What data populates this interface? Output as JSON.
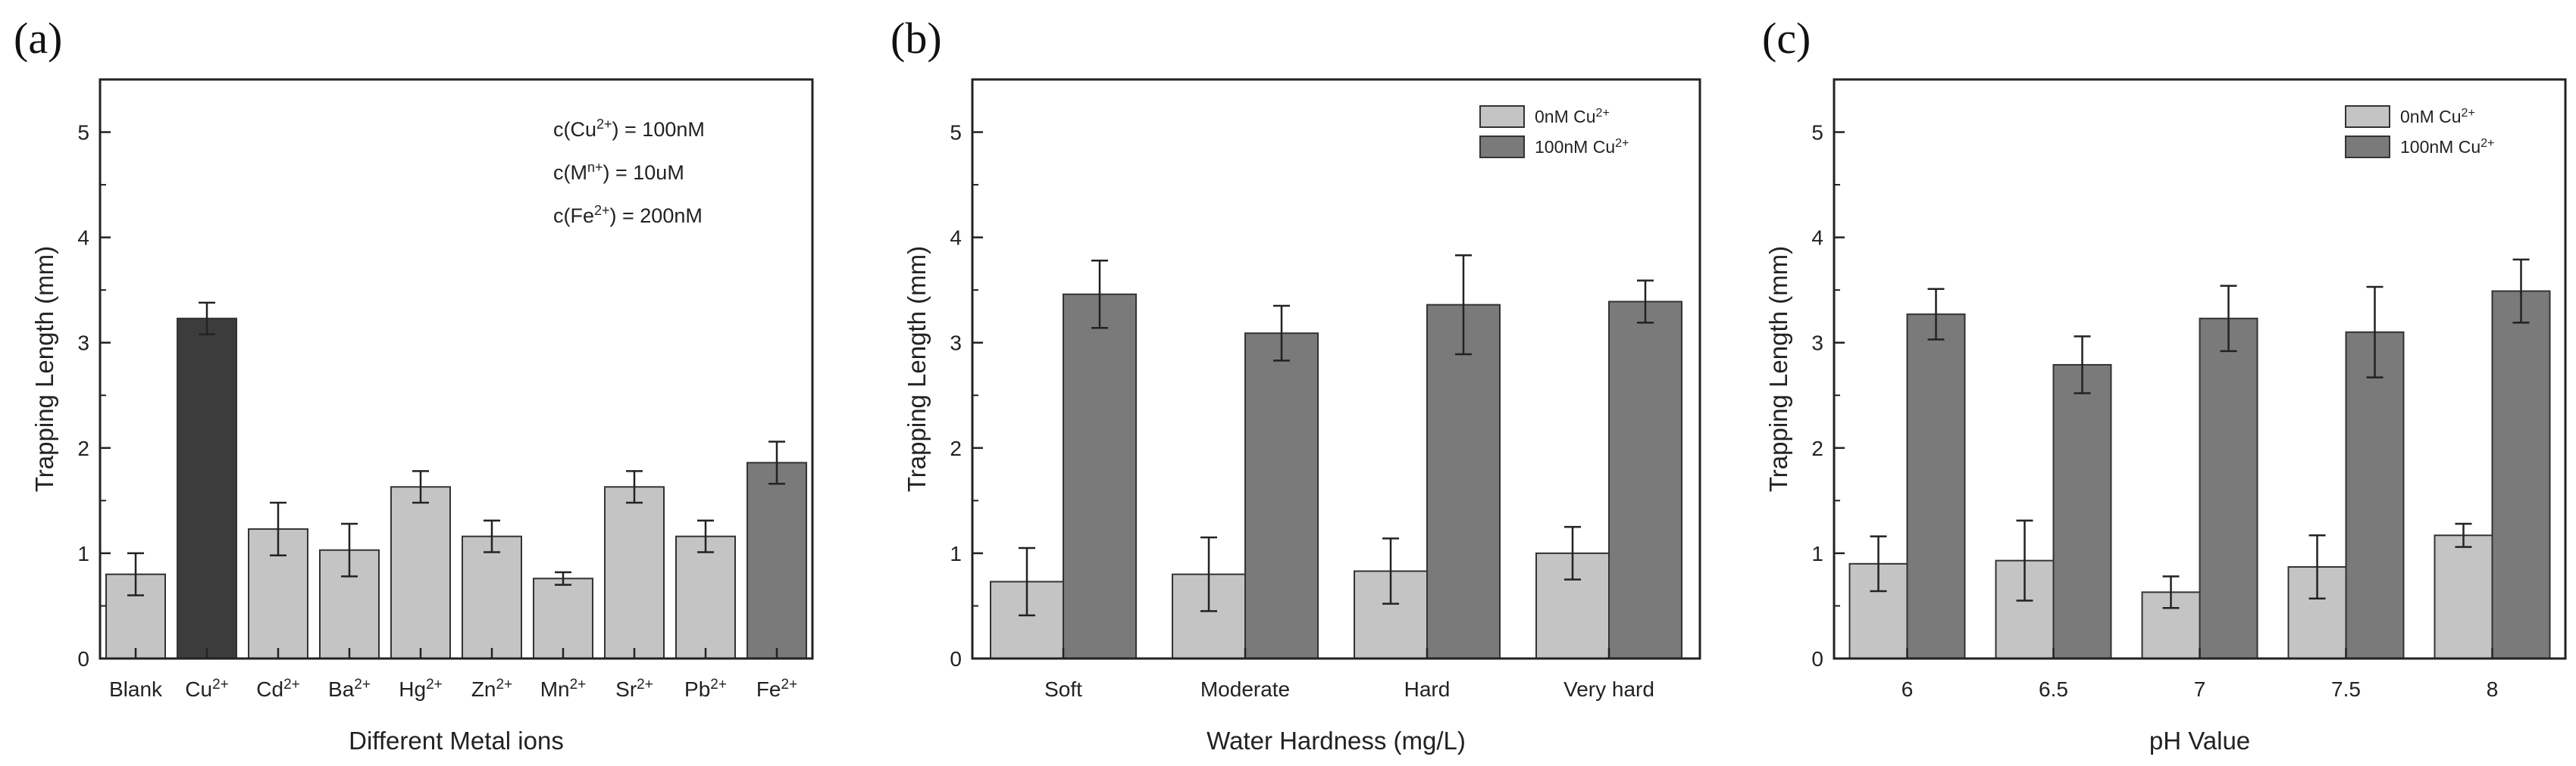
{
  "chart_data": [
    {
      "panel": "(a)",
      "type": "bar",
      "xlabel": "Different Metal ions",
      "ylabel": "Trapping Length (mm)",
      "ylim": [
        0,
        5.5
      ],
      "yticks": [
        "0",
        "1",
        "2",
        "3",
        "4",
        "5"
      ],
      "categories": [
        {
          "base": "Blank",
          "sup": ""
        },
        {
          "base": "Cu",
          "sup": "2+"
        },
        {
          "base": "Cd",
          "sup": "2+"
        },
        {
          "base": "Ba",
          "sup": "2+"
        },
        {
          "base": "Hg",
          "sup": "2+"
        },
        {
          "base": "Zn",
          "sup": "2+"
        },
        {
          "base": "Mn",
          "sup": "2+"
        },
        {
          "base": "Sr",
          "sup": "2+"
        },
        {
          "base": "Pb",
          "sup": "2+"
        },
        {
          "base": "Fe",
          "sup": "2+"
        }
      ],
      "values": [
        0.8,
        3.23,
        1.23,
        1.03,
        1.63,
        1.16,
        0.76,
        1.63,
        1.16,
        1.86
      ],
      "errors": [
        0.2,
        0.15,
        0.25,
        0.25,
        0.15,
        0.15,
        0.06,
        0.15,
        0.15,
        0.2
      ],
      "bar_colors": [
        "#c4c4c4",
        "#3c3c3c",
        "#c4c4c4",
        "#c4c4c4",
        "#c4c4c4",
        "#c4c4c4",
        "#c4c4c4",
        "#c4c4c4",
        "#c4c4c4",
        "#7a7a7a"
      ],
      "annotations": [
        [
          {
            "t": "c(Cu"
          },
          {
            "t": "2+",
            "sup": true
          },
          {
            "t": ") = 100nM"
          }
        ],
        [
          {
            "t": "c(M"
          },
          {
            "t": "n+",
            "sup": true
          },
          {
            "t": ") = 10uM"
          }
        ],
        [
          {
            "t": "c(Fe"
          },
          {
            "t": "2+",
            "sup": true
          },
          {
            "t": ") = 200nM"
          }
        ]
      ]
    },
    {
      "panel": "(b)",
      "type": "bar",
      "xlabel": "Water Hardness (mg/L)",
      "ylabel": "Trapping Length (mm)",
      "ylim": [
        0,
        5.5
      ],
      "yticks": [
        "0",
        "1",
        "2",
        "3",
        "4",
        "5"
      ],
      "categories": [
        {
          "base": "Soft",
          "sup": ""
        },
        {
          "base": "Moderate",
          "sup": ""
        },
        {
          "base": "Hard",
          "sup": ""
        },
        {
          "base": "Very hard",
          "sup": ""
        }
      ],
      "series": [
        {
          "name": "0nM Cu",
          "sup": "2+",
          "color": "#c4c4c4",
          "values": [
            0.73,
            0.8,
            0.83,
            1.0
          ],
          "errors": [
            0.32,
            0.35,
            0.31,
            0.25
          ]
        },
        {
          "name": "100nM Cu",
          "sup": "2+",
          "color": "#7a7a7a",
          "values": [
            3.46,
            3.09,
            3.36,
            3.39
          ],
          "errors": [
            0.32,
            0.26,
            0.47,
            0.2
          ]
        }
      ]
    },
    {
      "panel": "(c)",
      "type": "bar",
      "xlabel": "pH Value",
      "ylabel": "Trapping Length (mm)",
      "ylim": [
        0,
        5.5
      ],
      "yticks": [
        "0",
        "1",
        "2",
        "3",
        "4",
        "5"
      ],
      "categories": [
        {
          "base": "6",
          "sup": ""
        },
        {
          "base": "6.5",
          "sup": ""
        },
        {
          "base": "7",
          "sup": ""
        },
        {
          "base": "7.5",
          "sup": ""
        },
        {
          "base": "8",
          "sup": ""
        }
      ],
      "series": [
        {
          "name": "0nM Cu",
          "sup": "2+",
          "color": "#c4c4c4",
          "values": [
            0.9,
            0.93,
            0.63,
            0.87,
            1.17
          ],
          "errors": [
            0.26,
            0.38,
            0.15,
            0.3,
            0.11
          ]
        },
        {
          "name": "100nM Cu",
          "sup": "2+",
          "color": "#7a7a7a",
          "values": [
            3.27,
            2.79,
            3.23,
            3.1,
            3.49
          ],
          "errors": [
            0.24,
            0.27,
            0.31,
            0.43,
            0.3
          ]
        }
      ]
    }
  ]
}
